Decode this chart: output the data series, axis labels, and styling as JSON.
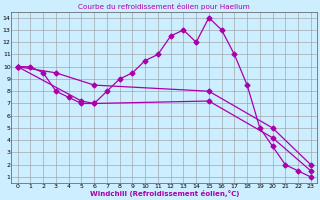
{
  "title": "Courbe du refroidissement éolien pour Haellum",
  "xlabel": "Windchill (Refroidissement éolien,°C)",
  "bg_color": "#cceeff",
  "line_color": "#aa00aa",
  "xlim": [
    -0.5,
    23.5
  ],
  "ylim": [
    0.5,
    14.5
  ],
  "xticks": [
    0,
    1,
    2,
    3,
    4,
    5,
    6,
    7,
    8,
    9,
    10,
    11,
    12,
    13,
    14,
    15,
    16,
    17,
    18,
    19,
    20,
    21,
    22,
    23
  ],
  "yticks": [
    1,
    2,
    3,
    4,
    5,
    6,
    7,
    8,
    9,
    10,
    11,
    12,
    13,
    14
  ],
  "curve_x": [
    0,
    1,
    2,
    3,
    4,
    5,
    6,
    7,
    8,
    9,
    10,
    11,
    12,
    13,
    14,
    15,
    16,
    17,
    18,
    19,
    20,
    21,
    22,
    23
  ],
  "curve_y": [
    10,
    10,
    9.5,
    8,
    7.5,
    7,
    7,
    8,
    9,
    9.5,
    10.5,
    11,
    12.5,
    13,
    12,
    14,
    13,
    11,
    8.5,
    5,
    3.5,
    2,
    1.5,
    1
  ],
  "line2_x": [
    0,
    23
  ],
  "line2_y": [
    10,
    2
  ],
  "line2_pts_x": [
    0,
    3,
    6,
    15,
    20,
    23
  ],
  "line2_pts_y": [
    10,
    9.5,
    8.5,
    8.0,
    5.0,
    2.0
  ],
  "line3_x": [
    0,
    23
  ],
  "line3_y": [
    10,
    1.5
  ],
  "line3_pts_x": [
    0,
    5,
    6,
    15,
    20,
    23
  ],
  "line3_pts_y": [
    10,
    7.2,
    7.0,
    7.2,
    4.2,
    1.5
  ]
}
